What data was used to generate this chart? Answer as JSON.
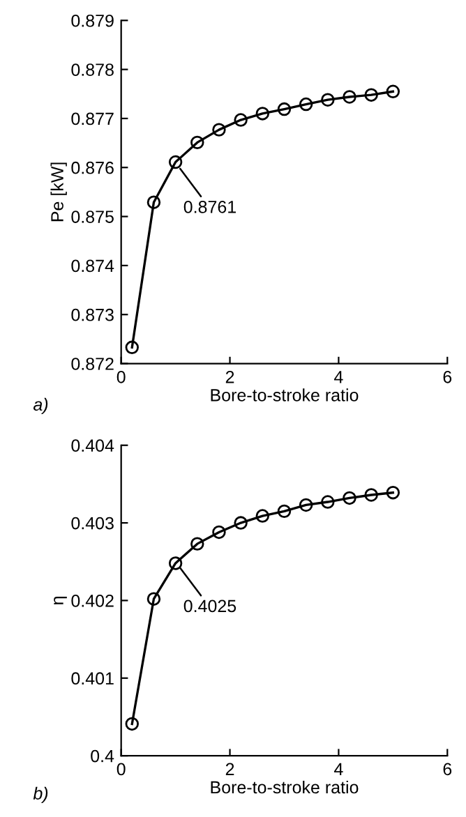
{
  "chart_data": [
    {
      "type": "line",
      "xlabel": "Bore-to-stroke ratio",
      "ylabel": "Pe [kW]",
      "x": [
        0.2,
        0.6,
        1.0,
        1.4,
        1.8,
        2.2,
        2.6,
        3.0,
        3.4,
        3.8,
        4.2,
        4.6,
        5.0
      ],
      "series": [
        {
          "color": "#000000",
          "values": [
            0.87233,
            0.87529,
            0.87611,
            0.87651,
            0.87677,
            0.87697,
            0.8771,
            0.87719,
            0.87729,
            0.87738,
            0.87744,
            0.87748,
            0.87755
          ]
        }
      ],
      "xlim": [
        0,
        6
      ],
      "xticks": [
        0,
        2,
        4,
        6
      ],
      "ylim": [
        0.872,
        0.879
      ],
      "yticks": [
        0.872,
        0.873,
        0.874,
        0.875,
        0.876,
        0.877,
        0.878,
        0.879
      ],
      "marker": "circle",
      "line_style": "solid",
      "grid": false,
      "legend": false,
      "annotations": [
        {
          "text": "0.8761",
          "x": 1.0,
          "y": 0.8761
        },
        "a)"
      ]
    },
    {
      "type": "line",
      "xlabel": "Bore-to-stroke ratio",
      "ylabel": "η",
      "x": [
        0.2,
        0.6,
        1.0,
        1.4,
        1.8,
        2.2,
        2.6,
        3.0,
        3.4,
        3.8,
        4.2,
        4.6,
        5.0
      ],
      "series": [
        {
          "color": "#000000",
          "values": [
            0.40041,
            0.40202,
            0.40248,
            0.40273,
            0.40288,
            0.403,
            0.40309,
            0.40315,
            0.40323,
            0.40327,
            0.40332,
            0.40336,
            0.40339
          ]
        }
      ],
      "xlim": [
        0,
        6
      ],
      "xticks": [
        0,
        2,
        4,
        6
      ],
      "ylim": [
        0.4,
        0.404
      ],
      "yticks": [
        {
          "value": 0.4,
          "label": "0.4"
        },
        0.401,
        0.402,
        0.403,
        0.404
      ],
      "marker": "circle",
      "line_style": "solid",
      "grid": false,
      "legend": false,
      "annotations": [
        {
          "text": "0.4025",
          "x": 1.0,
          "y": 0.4025
        },
        "b)"
      ]
    }
  ]
}
